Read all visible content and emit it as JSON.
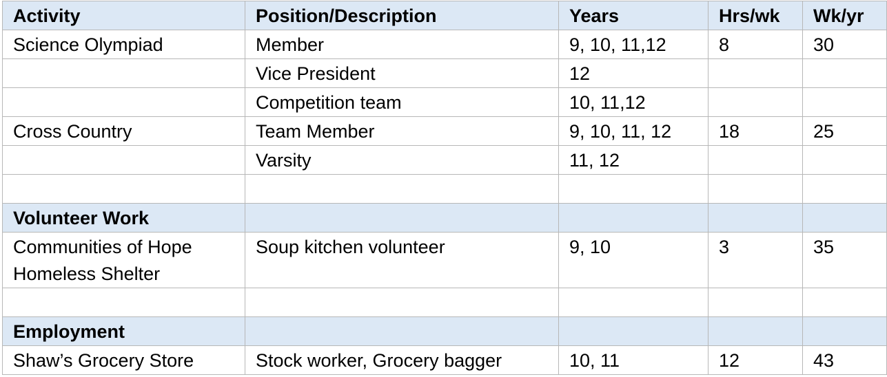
{
  "table": {
    "header": [
      "Activity",
      "Position/Description",
      "Years",
      "Hrs/wk",
      "Wk/yr"
    ],
    "rows": [
      [
        "Science Olympiad",
        "Member",
        "9, 10, 11,12",
        "8",
        "30"
      ],
      [
        "",
        "Vice President",
        "12",
        "",
        ""
      ],
      [
        "",
        "Competition team",
        "10, 11,12",
        "",
        ""
      ],
      [
        "Cross Country",
        "Team Member",
        "9, 10, 11, 12",
        "18",
        "25"
      ],
      [
        "",
        "Varsity",
        "11, 12",
        "",
        ""
      ],
      [
        "",
        "",
        "",
        "",
        ""
      ],
      [
        "Volunteer Work",
        "",
        "",
        "",
        ""
      ],
      [
        "Communities of Hope Homeless Shelter",
        "Soup kitchen volunteer",
        "9, 10",
        "3",
        "35"
      ],
      [
        "",
        "",
        "",
        "",
        ""
      ],
      [
        "Employment",
        "",
        "",
        "",
        ""
      ],
      [
        "Shaw’s Grocery Store",
        "Stock worker, Grocery bagger",
        "10, 11",
        "12",
        "43"
      ]
    ]
  }
}
